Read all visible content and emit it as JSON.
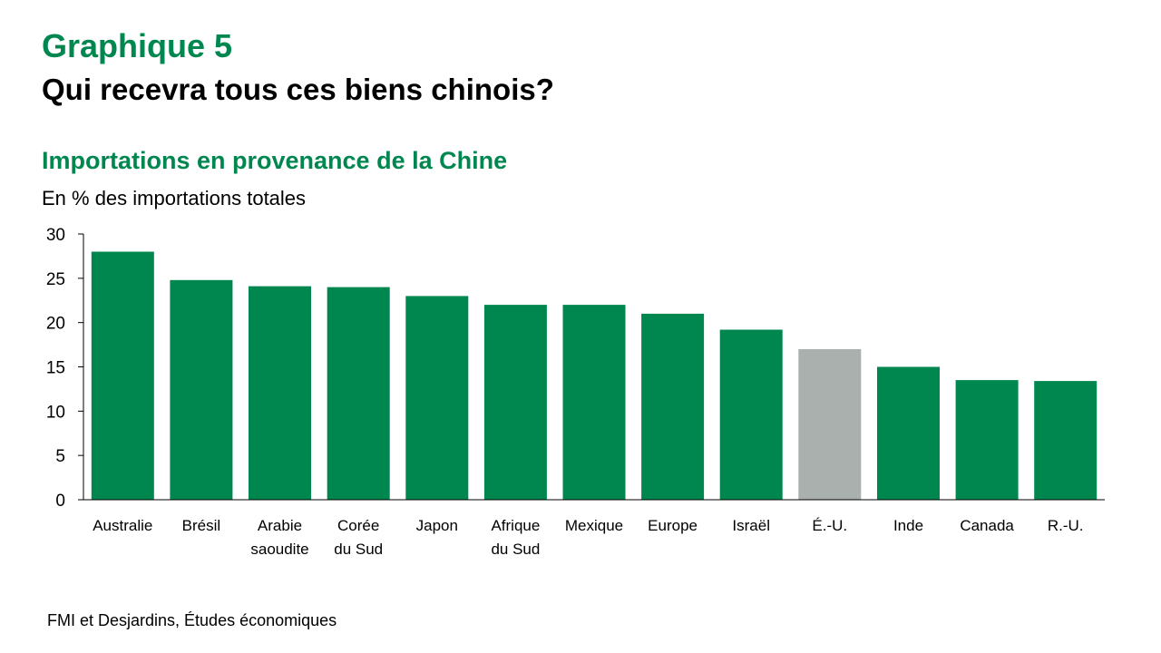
{
  "header": {
    "kicker": "Graphique 5",
    "headline": "Qui recevra tous ces biens chinois?"
  },
  "chart_data": {
    "type": "bar",
    "title": "Importations en provenance de la Chine",
    "subtitle": "En % des importations totales",
    "categories": [
      [
        "Australie"
      ],
      [
        "Brésil"
      ],
      [
        "Arabie",
        "saoudite"
      ],
      [
        "Corée",
        "du Sud"
      ],
      [
        "Japon"
      ],
      [
        "Afrique",
        "du Sud"
      ],
      [
        "Mexique"
      ],
      [
        "Europe"
      ],
      [
        "Israël"
      ],
      [
        "É.-U."
      ],
      [
        "Inde"
      ],
      [
        "Canada"
      ],
      [
        "R.-U."
      ]
    ],
    "values": [
      28,
      24.8,
      24.1,
      24,
      23,
      22,
      22,
      21,
      19.2,
      17,
      15,
      13.5,
      13.4
    ],
    "highlight_index": 9,
    "ylim": [
      0,
      30
    ],
    "yticks": [
      0,
      5,
      10,
      15,
      20,
      25,
      30
    ],
    "grid": false,
    "xlabel": "",
    "ylabel": ""
  },
  "colors": {
    "bar": "#00874F",
    "highlight_bar": "#A9B0AD",
    "accent_title": "#00874F",
    "axis": "#000000"
  },
  "footer": {
    "source": "FMI et Desjardins, Études économiques"
  }
}
